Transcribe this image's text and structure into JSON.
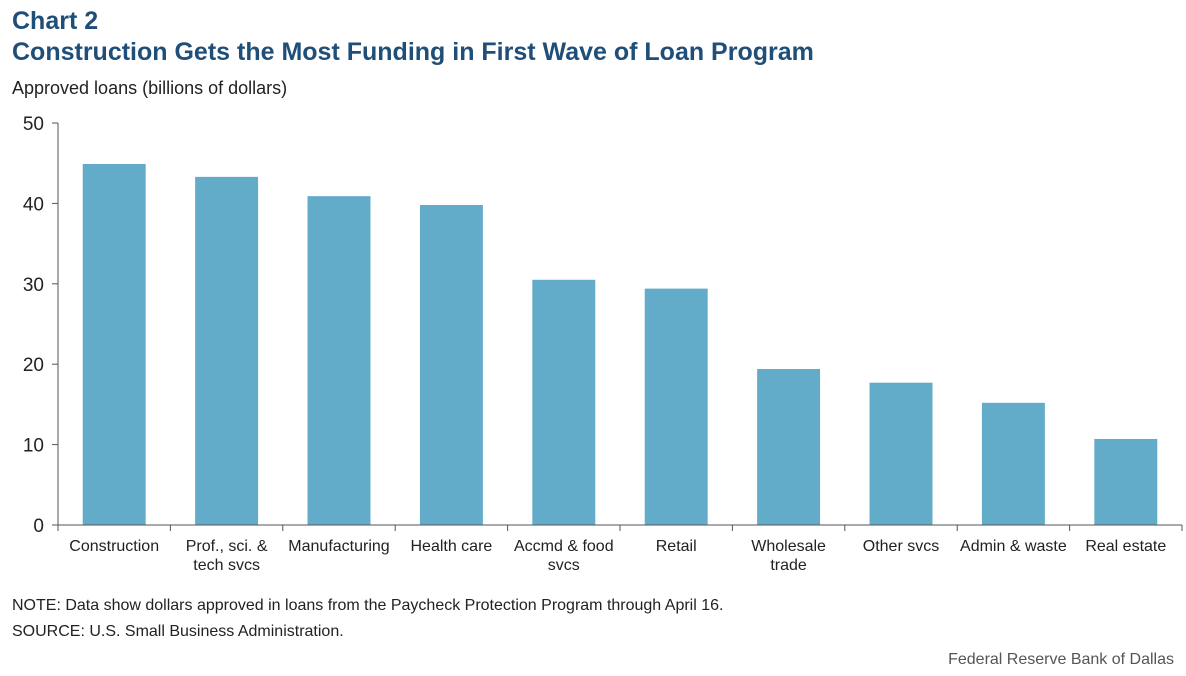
{
  "header": {
    "chart_number": "Chart 2",
    "title": "Construction Gets the Most Funding in First Wave of Loan Program",
    "ylabel": "Approved loans (billions of dollars)"
  },
  "footer": {
    "note": "NOTE: Data show dollars approved in loans from the Paycheck Protection Program through April 16.",
    "source": "SOURCE: U.S. Small Business Administration.",
    "credit": "Federal Reserve Bank of Dallas"
  },
  "colors": {
    "bar": "#62abc9",
    "title": "#1f4e79",
    "axis": "#555555"
  },
  "chart_data": {
    "type": "bar",
    "title": "Construction Gets the Most Funding in First Wave of Loan Program",
    "xlabel": "",
    "ylabel": "Approved loans (billions of dollars)",
    "ylim": [
      0,
      50
    ],
    "yticks": [
      0,
      10,
      20,
      30,
      40,
      50
    ],
    "grid": false,
    "categories": [
      [
        "Construction"
      ],
      [
        "Prof., sci. &",
        "tech svcs"
      ],
      [
        "Manufacturing"
      ],
      [
        "Health care"
      ],
      [
        "Accmd & food",
        "svcs"
      ],
      [
        "Retail"
      ],
      [
        "Wholesale",
        "trade"
      ],
      [
        "Other svcs"
      ],
      [
        "Admin & waste"
      ],
      [
        "Real estate"
      ]
    ],
    "values": [
      44.9,
      43.3,
      40.9,
      39.8,
      30.5,
      29.4,
      19.4,
      17.7,
      15.2,
      10.7
    ]
  }
}
